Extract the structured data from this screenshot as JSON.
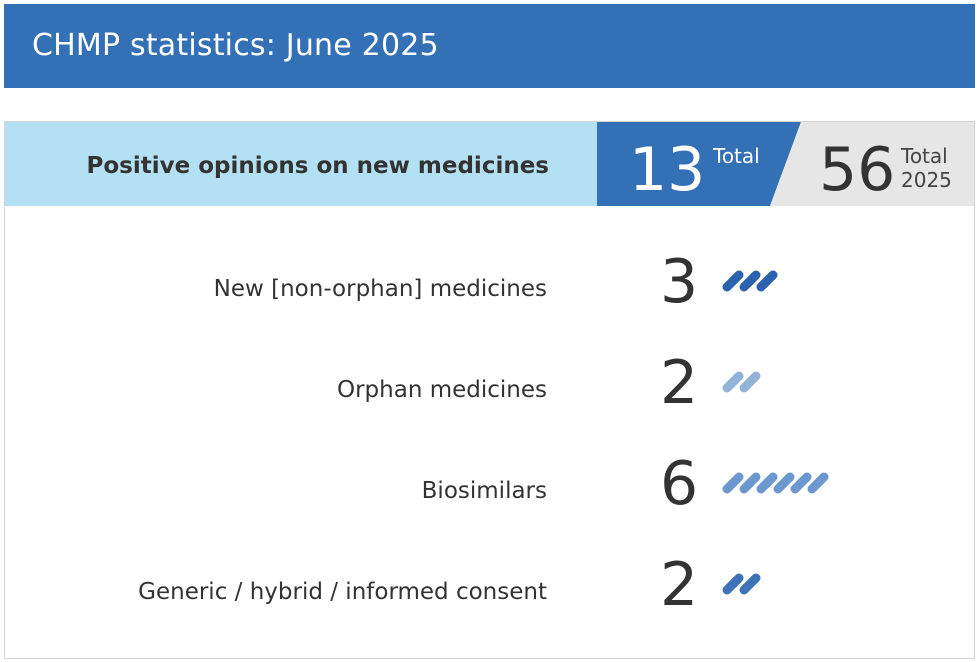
{
  "title": "CHMP statistics: June 2025",
  "chart_data": {
    "type": "table",
    "header": {
      "label": "Positive opinions on new medicines",
      "month_total": "13",
      "month_total_label": "Total",
      "year_total": "56",
      "year_total_label_line1": "Total",
      "year_total_label_line2": "2025"
    },
    "rows": [
      {
        "label": "New [non-orphan] medicines",
        "value": 3,
        "color": "#2a62b0"
      },
      {
        "label": "Orphan medicines",
        "value": 2,
        "color": "#93b4d9"
      },
      {
        "label": "Biosimilars",
        "value": 6,
        "color": "#6c98cf"
      },
      {
        "label": "Generic / hybrid / informed consent",
        "value": 2,
        "color": "#3f73b8"
      }
    ]
  },
  "colors": {
    "title_bar": "#3470b5",
    "header_light": "#b3e0f2",
    "header_dark": "#3470b5",
    "header_grey": "#e6e6e6"
  }
}
